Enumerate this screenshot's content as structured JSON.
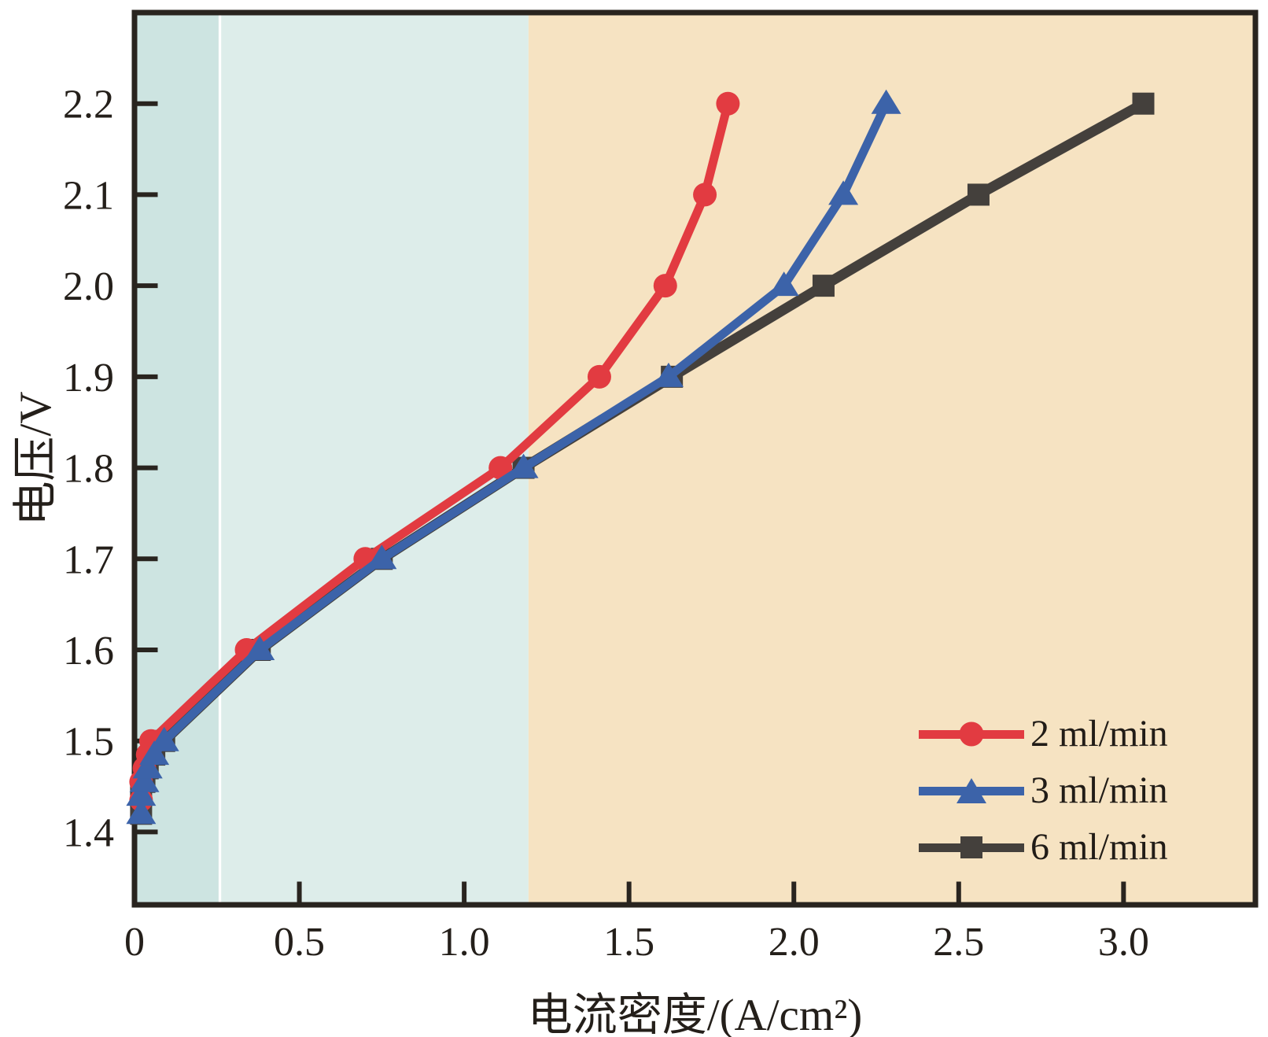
{
  "chart_data": {
    "type": "line",
    "title": "",
    "xlabel": "电流密度/(A/cm²)",
    "ylabel": "电压/V",
    "xlim": [
      0,
      3.4
    ],
    "ylim": [
      1.32,
      2.3
    ],
    "grid": false,
    "legend_position": "lower right",
    "axis_color": "#29241f",
    "text_color": "#241f1a",
    "x_ticks": [
      {
        "value": 0.0,
        "label": "0"
      },
      {
        "value": 0.5,
        "label": "0.5"
      },
      {
        "value": 1.0,
        "label": "1.0"
      },
      {
        "value": 1.5,
        "label": "1.5"
      },
      {
        "value": 2.0,
        "label": "2.0"
      },
      {
        "value": 2.5,
        "label": "2.5"
      },
      {
        "value": 3.0,
        "label": "3.0"
      }
    ],
    "y_ticks": [
      {
        "value": 1.4,
        "label": "1.4"
      },
      {
        "value": 1.5,
        "label": "1.5"
      },
      {
        "value": 1.6,
        "label": "1.6"
      },
      {
        "value": 1.7,
        "label": "1.7"
      },
      {
        "value": 1.8,
        "label": "1.8"
      },
      {
        "value": 1.9,
        "label": "1.9"
      },
      {
        "value": 2.0,
        "label": "2.0"
      },
      {
        "value": 2.1,
        "label": "2.1"
      },
      {
        "value": 2.2,
        "label": "2.2"
      }
    ],
    "background_bands": [
      {
        "from": 0.0,
        "to": 0.255,
        "color": "#cde4e1"
      },
      {
        "from": 0.263,
        "to": 1.195,
        "color": "#ddedea"
      },
      {
        "from": 1.195,
        "to": 3.4,
        "color": "#f6e3c2"
      }
    ],
    "series": [
      {
        "name": "2 ml/min",
        "color": "#e23b41",
        "marker": "circle",
        "draw_order": 1,
        "points": [
          [
            0.02,
            1.435
          ],
          [
            0.02,
            1.455
          ],
          [
            0.03,
            1.47
          ],
          [
            0.04,
            1.485
          ],
          [
            0.05,
            1.5
          ],
          [
            0.34,
            1.6
          ],
          [
            0.7,
            1.7
          ],
          [
            1.11,
            1.8
          ],
          [
            1.41,
            1.9
          ],
          [
            1.61,
            2.0
          ],
          [
            1.73,
            2.1
          ],
          [
            1.8,
            2.2
          ]
        ]
      },
      {
        "name": "3 ml/min",
        "color": "#3c63a9",
        "marker": "triangle",
        "draw_order": 2,
        "points": [
          [
            0.02,
            1.42
          ],
          [
            0.02,
            1.44
          ],
          [
            0.03,
            1.455
          ],
          [
            0.04,
            1.47
          ],
          [
            0.06,
            1.485
          ],
          [
            0.09,
            1.5
          ],
          [
            0.38,
            1.6
          ],
          [
            0.75,
            1.7
          ],
          [
            1.18,
            1.8
          ],
          [
            1.62,
            1.9
          ],
          [
            1.97,
            2.0
          ],
          [
            2.15,
            2.1
          ],
          [
            2.28,
            2.2
          ]
        ]
      },
      {
        "name": "6 ml/min",
        "color": "#44403c",
        "marker": "square",
        "draw_order": 0,
        "points": [
          [
            0.02,
            1.42
          ],
          [
            0.02,
            1.44
          ],
          [
            0.03,
            1.455
          ],
          [
            0.04,
            1.47
          ],
          [
            0.06,
            1.485
          ],
          [
            0.09,
            1.5
          ],
          [
            0.38,
            1.6
          ],
          [
            0.75,
            1.7
          ],
          [
            1.18,
            1.8
          ],
          [
            1.63,
            1.9
          ],
          [
            2.09,
            2.0
          ],
          [
            2.56,
            2.1
          ],
          [
            3.06,
            2.2
          ]
        ]
      }
    ]
  }
}
